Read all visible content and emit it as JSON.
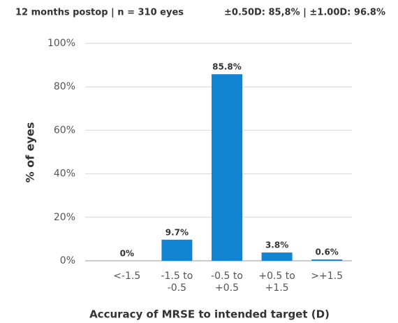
{
  "chart_data": {
    "type": "bar",
    "title": "12 months postop | n = 310 eyes",
    "subtitle": "±0.50D: 85,8% | ±1.00D: 96.8%",
    "y_label": "% of eyes",
    "x_label": "Accuracy of MRSE to intended target (D)",
    "categories": [
      [
        "<-1.5"
      ],
      [
        "-1.5 to",
        "-0.5"
      ],
      [
        "-0.5 to",
        "+0.5"
      ],
      [
        "+0.5 to",
        "+1.5"
      ],
      [
        ">+1.5"
      ]
    ],
    "values": [
      0,
      9.7,
      85.8,
      3.8,
      0.6
    ],
    "value_labels": [
      "0%",
      "9.7%",
      "85.8%",
      "3.8%",
      "0.6%"
    ],
    "color": "#1284d2",
    "ylim": [
      0,
      100
    ],
    "yticks": [
      {
        "value": 0,
        "label": "0%"
      },
      {
        "value": 20,
        "label": "20%"
      },
      {
        "value": 40,
        "label": "40%"
      },
      {
        "value": 60,
        "label": "60%"
      },
      {
        "value": 80,
        "label": "80%"
      },
      {
        "value": 100,
        "label": "100%"
      }
    ],
    "grid": true
  }
}
